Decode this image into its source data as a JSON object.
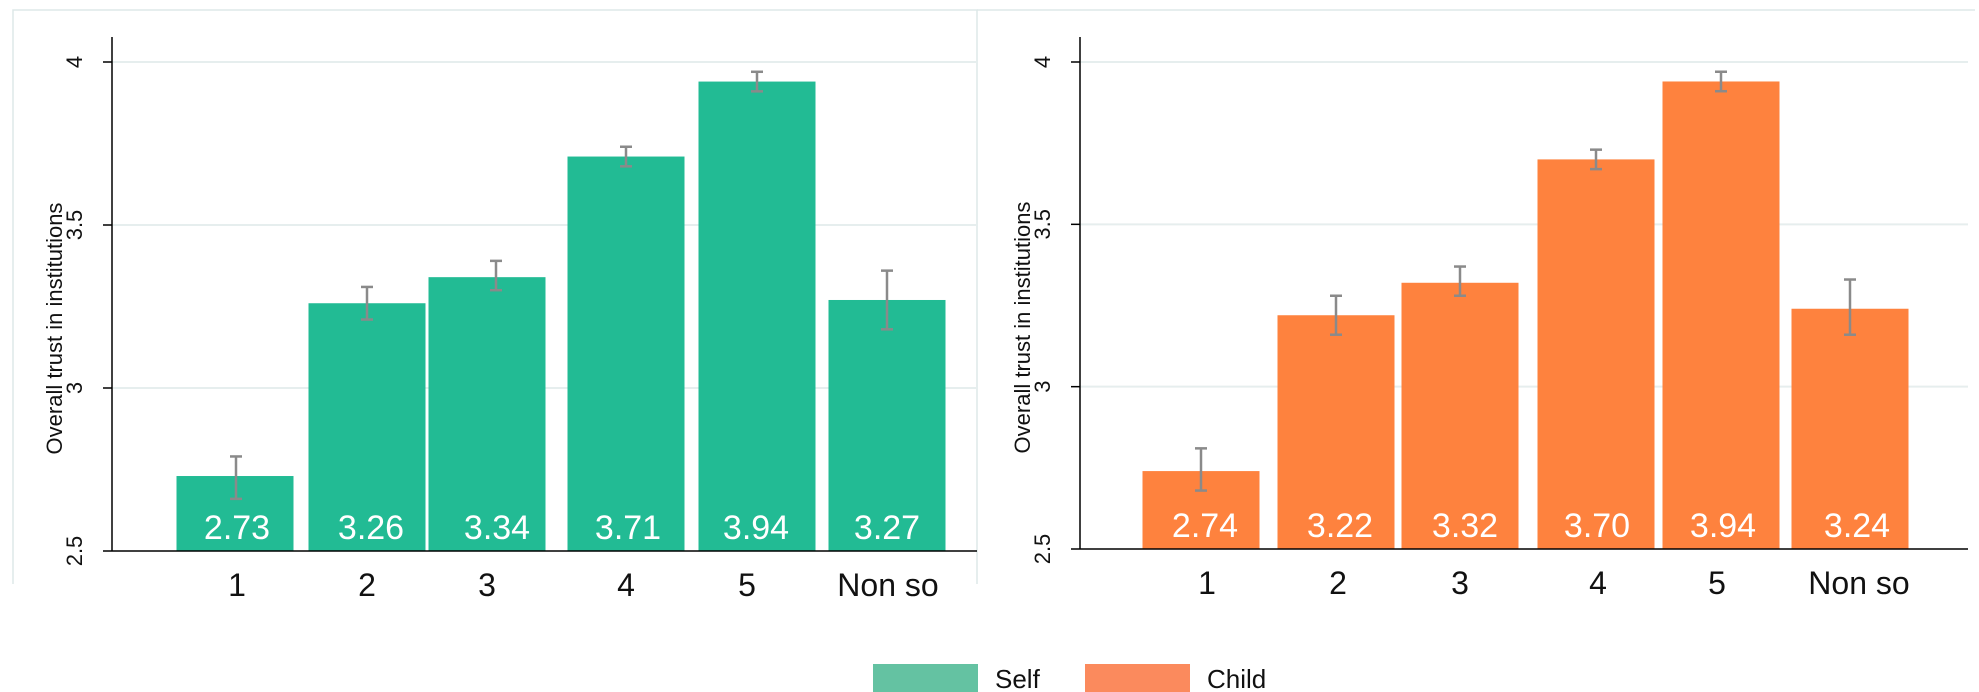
{
  "colors": {
    "self": "#22bb94",
    "child": "#fe823e",
    "self_legend": "#64c2a2",
    "child_legend": "#fb8a5d",
    "error_bar": "#8a8a8a",
    "grid": "#e6eeee",
    "bar_label": "#ffffff"
  },
  "legend": {
    "placement": "bottom-center",
    "items": [
      "Self",
      "Child"
    ]
  },
  "chart_data": [
    {
      "type": "bar",
      "ylabel": "Overall trust in institutions",
      "xlabel": "",
      "title": "",
      "ylim": [
        2.5,
        4
      ],
      "yticks": [
        2.5,
        3,
        3.5,
        4
      ],
      "ytick_labels": [
        "2.5",
        "3",
        "3.5",
        "4"
      ],
      "grid": true,
      "categories": [
        "1",
        "2",
        "3",
        "4",
        "5",
        "Non so"
      ],
      "series": [
        {
          "name": "Self",
          "values": [
            2.73,
            3.26,
            3.34,
            3.71,
            3.94,
            3.27
          ],
          "labels": [
            "2.73",
            "3.26",
            "3.34",
            "3.71",
            "3.94",
            "3.27"
          ],
          "ci_low": [
            2.66,
            3.21,
            3.3,
            3.68,
            3.91,
            3.18
          ],
          "ci_high": [
            2.79,
            3.31,
            3.39,
            3.74,
            3.97,
            3.36
          ]
        }
      ]
    },
    {
      "type": "bar",
      "ylabel": "Overall trust in institutions",
      "xlabel": "",
      "title": "",
      "ylim": [
        2.5,
        4
      ],
      "yticks": [
        2.5,
        3,
        3.5,
        4
      ],
      "ytick_labels": [
        "2.5",
        "3",
        "3.5",
        "4"
      ],
      "grid": true,
      "categories": [
        "1",
        "2",
        "3",
        "4",
        "5",
        "Non so"
      ],
      "series": [
        {
          "name": "Child",
          "values": [
            2.74,
            3.22,
            3.32,
            3.7,
            3.94,
            3.24
          ],
          "labels": [
            "2.74",
            "3.22",
            "3.32",
            "3.70",
            "3.94",
            "3.24"
          ],
          "ci_low": [
            2.68,
            3.16,
            3.28,
            3.67,
            3.91,
            3.16
          ],
          "ci_high": [
            2.81,
            3.28,
            3.37,
            3.73,
            3.97,
            3.33
          ]
        }
      ]
    }
  ]
}
